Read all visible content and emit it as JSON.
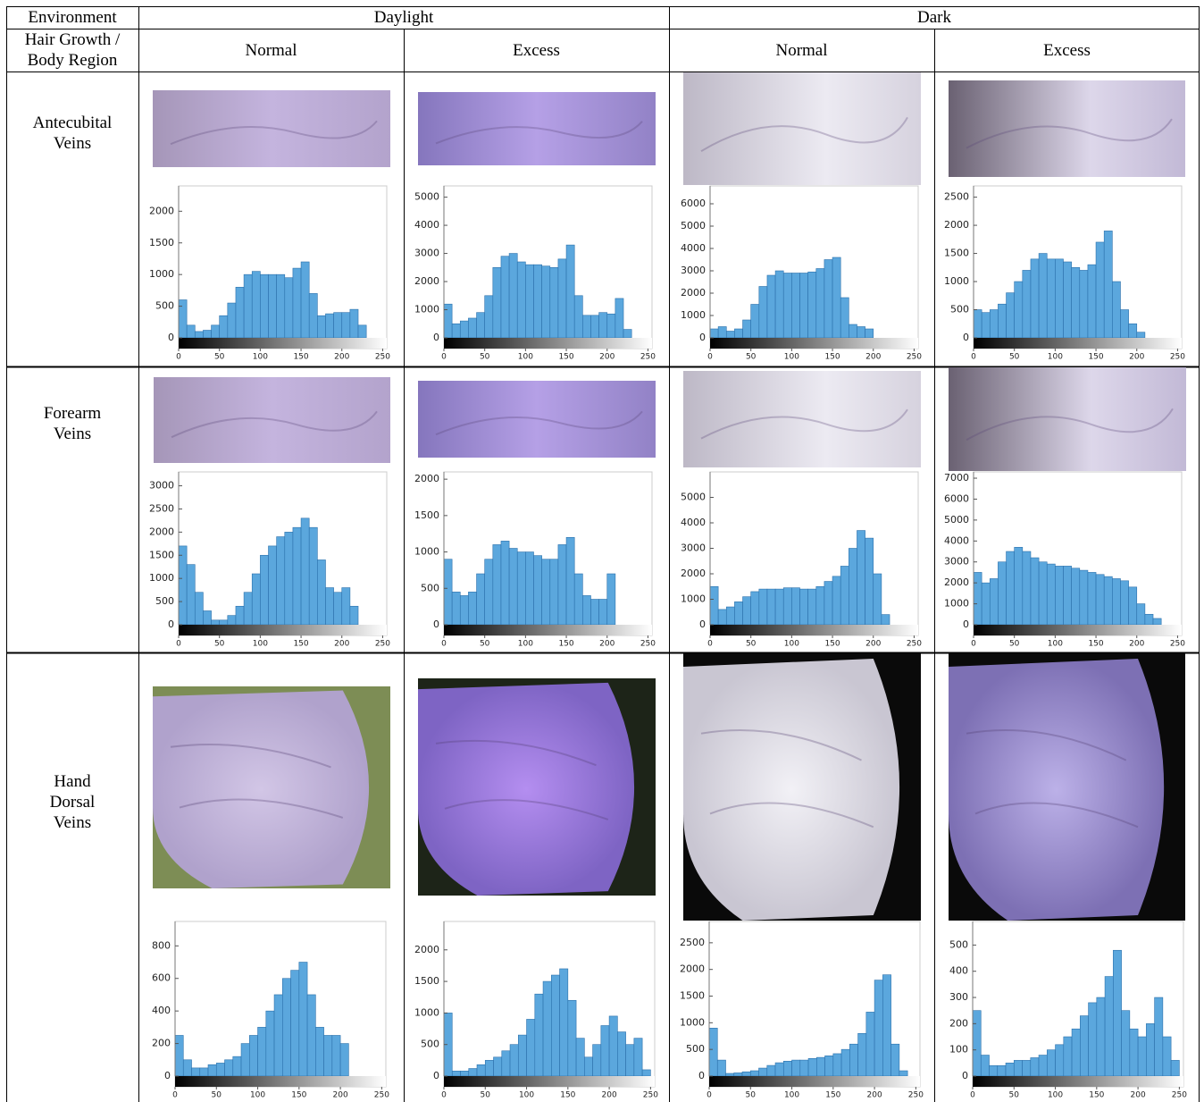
{
  "table": {
    "header": {
      "environment": "Environment",
      "groups": [
        "Daylight",
        "Dark"
      ],
      "row_header": "Hair Growth / Body Region",
      "columns": [
        "Normal",
        "Excess",
        "Normal",
        "Excess"
      ]
    },
    "rows": [
      "Antecubital Veins",
      "Forearm Veins",
      "Hand Dorsal Veins"
    ]
  },
  "chart_data": [
    {
      "type": "histogram",
      "color": "#5ba7dd",
      "edgecolor": "#2b70ab",
      "bins": [
        0,
        10,
        20,
        30,
        40,
        50,
        60,
        70,
        80,
        90,
        100,
        110,
        120,
        130,
        140,
        150,
        160,
        170,
        180,
        190,
        200,
        210,
        220,
        230,
        240,
        250
      ],
      "values": [
        600,
        200,
        100,
        120,
        200,
        350,
        550,
        800,
        1000,
        1050,
        1000,
        1000,
        1000,
        950,
        1100,
        1200,
        700,
        350,
        380,
        400,
        400,
        450,
        200,
        0,
        0
      ],
      "xlim": [
        0,
        255
      ],
      "xticks": [
        0,
        50,
        100,
        150,
        200,
        250
      ],
      "ylim": [
        0,
        2400
      ],
      "yticks": [
        0,
        500,
        1000,
        1500,
        2000
      ]
    },
    {
      "type": "histogram",
      "color": "#5ba7dd",
      "edgecolor": "#2b70ab",
      "bins": [
        0,
        10,
        20,
        30,
        40,
        50,
        60,
        70,
        80,
        90,
        100,
        110,
        120,
        130,
        140,
        150,
        160,
        170,
        180,
        190,
        200,
        210,
        220,
        230,
        240,
        250
      ],
      "values": [
        1200,
        500,
        600,
        700,
        900,
        1500,
        2500,
        2900,
        3000,
        2700,
        2600,
        2600,
        2550,
        2500,
        2800,
        3300,
        1500,
        800,
        800,
        900,
        850,
        1400,
        300,
        0,
        0
      ],
      "xlim": [
        0,
        255
      ],
      "xticks": [
        0,
        50,
        100,
        150,
        200,
        250
      ],
      "ylim": [
        0,
        5400
      ],
      "yticks": [
        0,
        1000,
        2000,
        3000,
        4000,
        5000
      ]
    },
    {
      "type": "histogram",
      "color": "#5ba7dd",
      "edgecolor": "#2b70ab",
      "bins": [
        0,
        10,
        20,
        30,
        40,
        50,
        60,
        70,
        80,
        90,
        100,
        110,
        120,
        130,
        140,
        150,
        160,
        170,
        180,
        190,
        200,
        210,
        220,
        230,
        240,
        250
      ],
      "values": [
        400,
        500,
        300,
        400,
        800,
        1500,
        2300,
        2800,
        3000,
        2900,
        2900,
        2900,
        2950,
        3100,
        3500,
        3600,
        1800,
        600,
        500,
        400,
        0,
        0,
        0,
        0,
        0
      ],
      "xlim": [
        0,
        255
      ],
      "xticks": [
        0,
        50,
        100,
        150,
        200,
        250
      ],
      "ylim": [
        0,
        6800
      ],
      "yticks": [
        0,
        1000,
        2000,
        3000,
        4000,
        5000,
        6000
      ]
    },
    {
      "type": "histogram",
      "color": "#5ba7dd",
      "edgecolor": "#2b70ab",
      "bins": [
        0,
        10,
        20,
        30,
        40,
        50,
        60,
        70,
        80,
        90,
        100,
        110,
        120,
        130,
        140,
        150,
        160,
        170,
        180,
        190,
        200,
        210,
        220,
        230,
        240,
        250
      ],
      "values": [
        500,
        450,
        500,
        600,
        800,
        1000,
        1200,
        1400,
        1500,
        1400,
        1400,
        1350,
        1250,
        1200,
        1300,
        1700,
        1900,
        1000,
        500,
        250,
        100,
        0,
        0,
        0,
        0
      ],
      "xlim": [
        0,
        255
      ],
      "xticks": [
        0,
        50,
        100,
        150,
        200,
        250
      ],
      "ylim": [
        0,
        2700
      ],
      "yticks": [
        0,
        500,
        1000,
        1500,
        2000,
        2500
      ]
    },
    {
      "type": "histogram",
      "color": "#5ba7dd",
      "edgecolor": "#2b70ab",
      "bins": [
        0,
        10,
        20,
        30,
        40,
        50,
        60,
        70,
        80,
        90,
        100,
        110,
        120,
        130,
        140,
        150,
        160,
        170,
        180,
        190,
        200,
        210,
        220,
        230,
        240,
        250
      ],
      "values": [
        1700,
        1300,
        700,
        300,
        100,
        100,
        200,
        400,
        700,
        1100,
        1500,
        1700,
        1900,
        2000,
        2100,
        2300,
        2100,
        1400,
        800,
        700,
        800,
        400,
        0,
        0,
        0
      ],
      "xlim": [
        0,
        255
      ],
      "xticks": [
        0,
        50,
        100,
        150,
        200,
        250
      ],
      "ylim": [
        0,
        3300
      ],
      "yticks": [
        0,
        500,
        1000,
        1500,
        2000,
        2500,
        3000
      ]
    },
    {
      "type": "histogram",
      "color": "#5ba7dd",
      "edgecolor": "#2b70ab",
      "bins": [
        0,
        10,
        20,
        30,
        40,
        50,
        60,
        70,
        80,
        90,
        100,
        110,
        120,
        130,
        140,
        150,
        160,
        170,
        180,
        190,
        200,
        210,
        220,
        230,
        240,
        250
      ],
      "values": [
        900,
        450,
        400,
        450,
        700,
        900,
        1100,
        1150,
        1050,
        1000,
        1000,
        950,
        900,
        900,
        1100,
        1200,
        700,
        400,
        350,
        350,
        700,
        0,
        0,
        0,
        0
      ],
      "xlim": [
        0,
        255
      ],
      "xticks": [
        0,
        50,
        100,
        150,
        200,
        250
      ],
      "ylim": [
        0,
        2100
      ],
      "yticks": [
        0,
        500,
        1000,
        1500,
        2000
      ]
    },
    {
      "type": "histogram",
      "color": "#5ba7dd",
      "edgecolor": "#2b70ab",
      "bins": [
        0,
        10,
        20,
        30,
        40,
        50,
        60,
        70,
        80,
        90,
        100,
        110,
        120,
        130,
        140,
        150,
        160,
        170,
        180,
        190,
        200,
        210,
        220,
        230,
        240,
        250
      ],
      "values": [
        1500,
        600,
        700,
        900,
        1100,
        1300,
        1400,
        1400,
        1400,
        1450,
        1450,
        1400,
        1400,
        1500,
        1700,
        1900,
        2300,
        3000,
        3700,
        3400,
        2000,
        400,
        0,
        0,
        0
      ],
      "xlim": [
        0,
        255
      ],
      "xticks": [
        0,
        50,
        100,
        150,
        200,
        250
      ],
      "ylim": [
        0,
        6000
      ],
      "yticks": [
        0,
        1000,
        2000,
        3000,
        4000,
        5000
      ]
    },
    {
      "type": "histogram",
      "color": "#5ba7dd",
      "edgecolor": "#2b70ab",
      "bins": [
        0,
        10,
        20,
        30,
        40,
        50,
        60,
        70,
        80,
        90,
        100,
        110,
        120,
        130,
        140,
        150,
        160,
        170,
        180,
        190,
        200,
        210,
        220,
        230,
        240,
        250
      ],
      "values": [
        2500,
        2000,
        2200,
        3000,
        3500,
        3700,
        3500,
        3200,
        3000,
        2900,
        2800,
        2800,
        2700,
        2600,
        2500,
        2400,
        2300,
        2200,
        2100,
        1800,
        1000,
        500,
        300,
        0,
        0
      ],
      "xlim": [
        0,
        255
      ],
      "xticks": [
        0,
        50,
        100,
        150,
        200,
        250
      ],
      "ylim": [
        0,
        7300
      ],
      "yticks": [
        0,
        1000,
        2000,
        3000,
        4000,
        5000,
        6000,
        7000
      ]
    },
    {
      "type": "histogram",
      "color": "#5ba7dd",
      "edgecolor": "#2b70ab",
      "bins": [
        0,
        10,
        20,
        30,
        40,
        50,
        60,
        70,
        80,
        90,
        100,
        110,
        120,
        130,
        140,
        150,
        160,
        170,
        180,
        190,
        200,
        210,
        220,
        230,
        240,
        250
      ],
      "values": [
        250,
        100,
        50,
        50,
        70,
        80,
        100,
        120,
        200,
        250,
        300,
        400,
        500,
        600,
        650,
        700,
        500,
        300,
        250,
        250,
        200,
        0,
        0,
        0,
        0
      ],
      "xlim": [
        0,
        255
      ],
      "xticks": [
        0,
        50,
        100,
        150,
        200,
        250
      ],
      "ylim": [
        0,
        950
      ],
      "yticks": [
        0,
        200,
        400,
        600,
        800
      ]
    },
    {
      "type": "histogram",
      "color": "#5ba7dd",
      "edgecolor": "#2b70ab",
      "bins": [
        0,
        10,
        20,
        30,
        40,
        50,
        60,
        70,
        80,
        90,
        100,
        110,
        120,
        130,
        140,
        150,
        160,
        170,
        180,
        190,
        200,
        210,
        220,
        230,
        240,
        250
      ],
      "values": [
        1000,
        80,
        80,
        120,
        180,
        250,
        300,
        400,
        500,
        650,
        900,
        1300,
        1500,
        1600,
        1700,
        1200,
        600,
        300,
        500,
        800,
        950,
        700,
        500,
        600,
        100
      ],
      "xlim": [
        0,
        255
      ],
      "xticks": [
        0,
        50,
        100,
        150,
        200,
        250
      ],
      "ylim": [
        0,
        2450
      ],
      "yticks": [
        0,
        500,
        1000,
        1500,
        2000
      ]
    },
    {
      "type": "histogram",
      "color": "#5ba7dd",
      "edgecolor": "#2b70ab",
      "bins": [
        0,
        10,
        20,
        30,
        40,
        50,
        60,
        70,
        80,
        90,
        100,
        110,
        120,
        130,
        140,
        150,
        160,
        170,
        180,
        190,
        200,
        210,
        220,
        230,
        240,
        250
      ],
      "values": [
        900,
        300,
        50,
        60,
        80,
        100,
        150,
        200,
        250,
        280,
        300,
        300,
        330,
        350,
        380,
        420,
        500,
        600,
        800,
        1200,
        1800,
        1900,
        600,
        100,
        0
      ],
      "xlim": [
        0,
        255
      ],
      "xticks": [
        0,
        50,
        100,
        150,
        200,
        250
      ],
      "ylim": [
        0,
        2900
      ],
      "yticks": [
        0,
        500,
        1000,
        1500,
        2000,
        2500
      ]
    },
    {
      "type": "histogram",
      "color": "#5ba7dd",
      "edgecolor": "#2b70ab",
      "bins": [
        0,
        10,
        20,
        30,
        40,
        50,
        60,
        70,
        80,
        90,
        100,
        110,
        120,
        130,
        140,
        150,
        160,
        170,
        180,
        190,
        200,
        210,
        220,
        230,
        240,
        250
      ],
      "values": [
        250,
        80,
        40,
        40,
        50,
        60,
        60,
        70,
        80,
        100,
        120,
        150,
        180,
        230,
        280,
        300,
        380,
        480,
        250,
        180,
        150,
        200,
        300,
        150,
        60
      ],
      "xlim": [
        0,
        255
      ],
      "xticks": [
        0,
        50,
        100,
        150,
        200,
        250
      ],
      "ylim": [
        0,
        590
      ],
      "yticks": [
        0,
        100,
        200,
        300,
        400,
        500
      ]
    }
  ]
}
